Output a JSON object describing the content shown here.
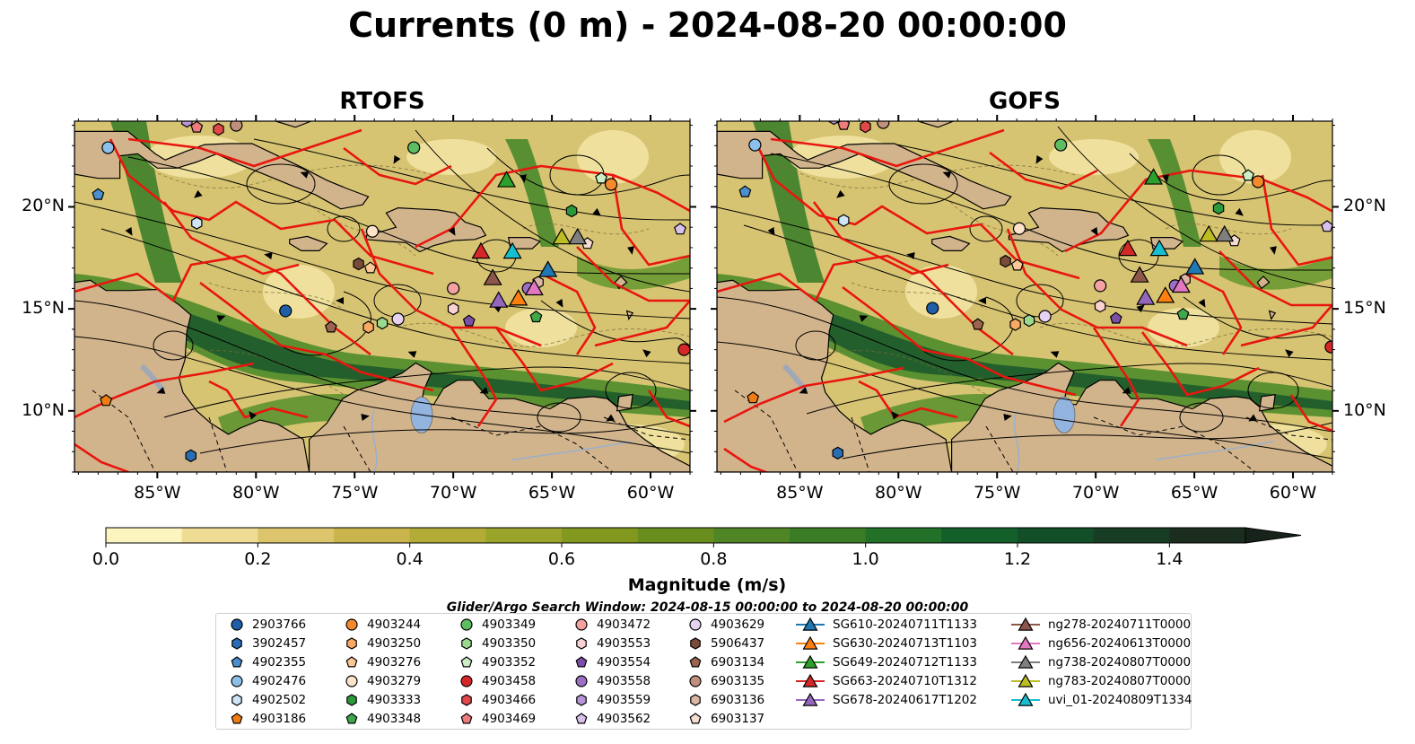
{
  "title": "Currents (0 m) - 2024-08-20 00:00:00",
  "panels": [
    {
      "title": "RTOFS"
    },
    {
      "title": "GOFS"
    }
  ],
  "lon_ticks": [
    "85°W",
    "80°W",
    "75°W",
    "70°W",
    "65°W",
    "60°W"
  ],
  "lat_ticks": [
    "20°N",
    "15°N",
    "10°N"
  ],
  "colorbar": {
    "label": "Magnitude (m/s)",
    "ticks": [
      "0.0",
      "0.2",
      "0.4",
      "0.6",
      "0.8",
      "1.0",
      "1.2",
      "1.4"
    ],
    "colors": [
      "#fdf5c0",
      "#efdc94",
      "#dcc56c",
      "#c9b54c",
      "#b2ab36",
      "#9aa42a",
      "#82981e",
      "#6a8e1e",
      "#4f8524",
      "#3a7c26",
      "#237029",
      "#135f2a",
      "#124e28",
      "#173d24",
      "#1b2d1e",
      "#16221a"
    ]
  },
  "search_window": "Glider/Argo Search Window: 2024-08-15 00:00:00 to 2024-08-20 00:00:00",
  "legend": {
    "columns": [
      [
        {
          "label": "2903766",
          "marker": "circle",
          "color": "#1f5fa8"
        },
        {
          "label": "3902457",
          "marker": "hexagon",
          "color": "#2a6db4"
        },
        {
          "label": "4902355",
          "marker": "pentagon",
          "color": "#4b8fcf"
        },
        {
          "label": "4902476",
          "marker": "circle",
          "color": "#8cc0e8"
        },
        {
          "label": "4902502",
          "marker": "hexagon",
          "color": "#cfe5f5"
        },
        {
          "label": "4903186",
          "marker": "pentagon",
          "color": "#f07d12"
        }
      ],
      [
        {
          "label": "4903244",
          "marker": "circle",
          "color": "#f58a2c"
        },
        {
          "label": "4903250",
          "marker": "hexagon",
          "color": "#f9a961"
        },
        {
          "label": "4903276",
          "marker": "pentagon",
          "color": "#fbc896"
        },
        {
          "label": "4903279",
          "marker": "circle",
          "color": "#fde3c9"
        },
        {
          "label": "4903333",
          "marker": "hexagon",
          "color": "#2a9a3c"
        },
        {
          "label": "4903348",
          "marker": "pentagon",
          "color": "#3fa84a"
        }
      ],
      [
        {
          "label": "4903349",
          "marker": "circle",
          "color": "#5cbd62"
        },
        {
          "label": "4903350",
          "marker": "hexagon",
          "color": "#9bd98f"
        },
        {
          "label": "4903352",
          "marker": "pentagon",
          "color": "#cdeec4"
        },
        {
          "label": "4903458",
          "marker": "circle",
          "color": "#d62728"
        },
        {
          "label": "4903466",
          "marker": "hexagon",
          "color": "#e24848"
        },
        {
          "label": "4903469",
          "marker": "pentagon",
          "color": "#ef7c7c"
        }
      ],
      [
        {
          "label": "4903472",
          "marker": "circle",
          "color": "#f4a1a1"
        },
        {
          "label": "4903553",
          "marker": "hexagon",
          "color": "#fbd2d2"
        },
        {
          "label": "4903554",
          "marker": "pentagon",
          "color": "#7b4fa8"
        },
        {
          "label": "4903558",
          "marker": "circle",
          "color": "#9b6fc4"
        },
        {
          "label": "4903559",
          "marker": "hexagon",
          "color": "#b894d8"
        },
        {
          "label": "4903562",
          "marker": "pentagon",
          "color": "#d9c1ec"
        }
      ],
      [
        {
          "label": "4903629",
          "marker": "circle",
          "color": "#e6d3f3"
        },
        {
          "label": "5906437",
          "marker": "hexagon",
          "color": "#7a4a3a"
        },
        {
          "label": "6903134",
          "marker": "pentagon",
          "color": "#9a6450"
        },
        {
          "label": "6903135",
          "marker": "circle",
          "color": "#c0907c"
        },
        {
          "label": "6903136",
          "marker": "hexagon",
          "color": "#ddb5a5"
        },
        {
          "label": "6903137",
          "marker": "pentagon",
          "color": "#f5ddd3"
        }
      ],
      [
        {
          "label": "SG610-20240711T1133",
          "marker": "triangle",
          "color": "#1f77b4"
        },
        {
          "label": "SG630-20240713T1103",
          "marker": "triangle",
          "color": "#ff7f0e"
        },
        {
          "label": "SG649-20240712T1133",
          "marker": "triangle",
          "color": "#2ca02c"
        },
        {
          "label": "SG663-20240710T1312",
          "marker": "triangle",
          "color": "#d62728"
        },
        {
          "label": "SG678-20240617T1202",
          "marker": "triangle",
          "color": "#9467bd"
        }
      ],
      [
        {
          "label": "ng278-20240711T0000",
          "marker": "triangle",
          "color": "#8c564b"
        },
        {
          "label": "ng656-20240613T0000",
          "marker": "triangle",
          "color": "#e377c2"
        },
        {
          "label": "ng738-20240807T0000",
          "marker": "triangle",
          "color": "#7f7f7f"
        },
        {
          "label": "ng783-20240807T0000",
          "marker": "triangle",
          "color": "#bcbd22"
        },
        {
          "label": "uvi_01-20240809T1334",
          "marker": "triangle",
          "color": "#17becf"
        }
      ]
    ]
  }
}
